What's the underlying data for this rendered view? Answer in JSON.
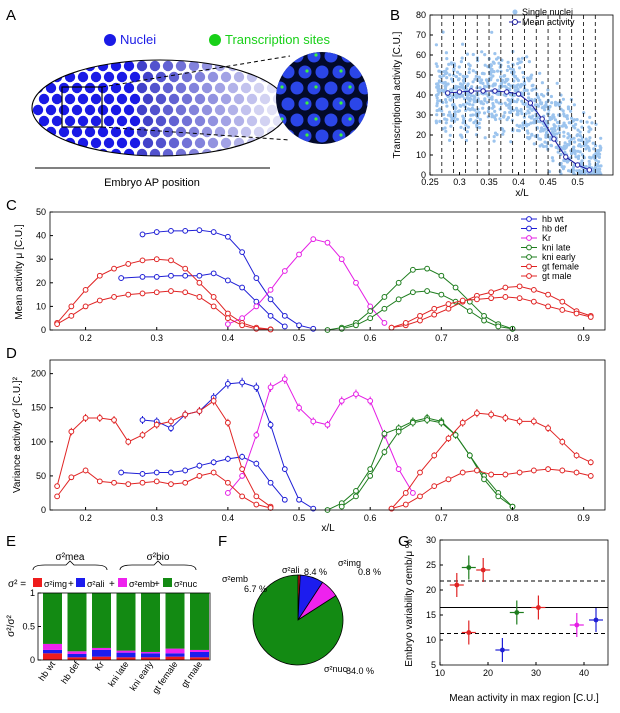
{
  "panel_letters": [
    "A",
    "B",
    "C",
    "D",
    "E",
    "F",
    "G"
  ],
  "panelA": {
    "nuclei_label": "Nuclei",
    "sites_label": "Transcription sites",
    "axis_label": "Embryo AP position",
    "nuclei_color": "#1a1ae6",
    "sites_color": "#18d018"
  },
  "chart_data": [
    {
      "id": "B",
      "type": "scatter",
      "title": "",
      "xlabel": "x/L",
      "ylabel": "Transcriptional activity [C.U.]",
      "xlim": [
        0.25,
        0.56
      ],
      "ylim": [
        0,
        80
      ],
      "xticks": [
        "0.25",
        "0.3",
        "0.35",
        "0.4",
        "0.45",
        "0.5"
      ],
      "yticks": [
        "0",
        "10",
        "20",
        "30",
        "40",
        "50",
        "60",
        "70",
        "80"
      ],
      "legend": [
        "Single nuclei",
        "Mean activity"
      ],
      "bin_edges": [
        0.27,
        0.29,
        0.31,
        0.33,
        0.35,
        0.37,
        0.39,
        0.41,
        0.43,
        0.45,
        0.47,
        0.49,
        0.51,
        0.53
      ],
      "mean_x": [
        0.28,
        0.3,
        0.32,
        0.34,
        0.36,
        0.38,
        0.4,
        0.42,
        0.44,
        0.46,
        0.48,
        0.5,
        0.52
      ],
      "mean_y": [
        41,
        41.5,
        42,
        42,
        42,
        41.5,
        40.5,
        36,
        28,
        18,
        9,
        5,
        2.5
      ]
    },
    {
      "id": "C",
      "type": "line",
      "xlabel": "",
      "ylabel": "Mean activity μ [C.U.]",
      "xlim": [
        0.15,
        0.93
      ],
      "ylim": [
        0,
        50
      ],
      "xticks": [
        "0.2",
        "0.3",
        "0.4",
        "0.5",
        "0.6",
        "0.7",
        "0.8",
        "0.9"
      ],
      "yticks": [
        "0",
        "10",
        "20",
        "30",
        "40",
        "50"
      ],
      "legend_position": "top-right",
      "series": [
        {
          "name": "hb wt",
          "color": "#1f1fd6",
          "x": [
            0.28,
            0.3,
            0.32,
            0.34,
            0.36,
            0.38,
            0.4,
            0.42,
            0.44,
            0.46,
            0.48,
            0.5,
            0.52
          ],
          "y": [
            40.5,
            41.5,
            42,
            42,
            42.3,
            41.5,
            39.5,
            33,
            22,
            13,
            6,
            2,
            0.5
          ]
        },
        {
          "name": "hb def",
          "color": "#1f1fd6",
          "x": [
            0.25,
            0.28,
            0.3,
            0.32,
            0.34,
            0.36,
            0.38,
            0.4,
            0.42,
            0.44,
            0.46,
            0.48
          ],
          "y": [
            22,
            22.5,
            22.5,
            23,
            23,
            23,
            24,
            21,
            18,
            12,
            6,
            1.5
          ]
        },
        {
          "name": "Kr",
          "color": "#e51ee5",
          "x": [
            0.4,
            0.42,
            0.44,
            0.46,
            0.48,
            0.5,
            0.52,
            0.54,
            0.56,
            0.58,
            0.6,
            0.62
          ],
          "y": [
            2.5,
            5,
            10,
            17,
            25,
            32,
            38.5,
            37,
            30,
            20,
            10,
            3
          ]
        },
        {
          "name": "kni late",
          "color": "#1e7d1e",
          "x": [
            0.54,
            0.56,
            0.58,
            0.6,
            0.62,
            0.64,
            0.66,
            0.68,
            0.7,
            0.72,
            0.74,
            0.76,
            0.78,
            0.8
          ],
          "y": [
            0,
            1,
            3,
            8,
            14,
            20,
            25.5,
            26,
            23,
            18,
            12,
            6,
            2.5,
            0.5
          ]
        },
        {
          "name": "kni early",
          "color": "#1e7d1e",
          "x": [
            0.56,
            0.58,
            0.6,
            0.62,
            0.64,
            0.66,
            0.68,
            0.7,
            0.72,
            0.74,
            0.76,
            0.78,
            0.8
          ],
          "y": [
            0.5,
            2,
            5,
            9,
            13,
            16,
            16.5,
            15,
            12,
            8,
            4,
            1.5,
            0.5
          ]
        },
        {
          "name": "gt female",
          "color": "#e02424",
          "x": [
            0.16,
            0.18,
            0.2,
            0.22,
            0.24,
            0.26,
            0.28,
            0.3,
            0.32,
            0.34,
            0.36,
            0.38,
            0.4,
            0.42,
            0.44,
            0.46,
            0.63,
            0.65,
            0.67,
            0.69,
            0.71,
            0.73,
            0.75,
            0.77,
            0.79,
            0.81,
            0.83,
            0.85,
            0.87,
            0.89,
            0.91
          ],
          "y": [
            3,
            10,
            17,
            23,
            26,
            28,
            29.5,
            30,
            29.5,
            26,
            20,
            14,
            7,
            3,
            1,
            0.3,
            1,
            2,
            4,
            6.5,
            9,
            12,
            14.5,
            16,
            18,
            18.5,
            17,
            15,
            12,
            8,
            6
          ]
        },
        {
          "name": "gt male",
          "color": "#e02424",
          "x": [
            0.16,
            0.18,
            0.2,
            0.22,
            0.24,
            0.26,
            0.28,
            0.3,
            0.32,
            0.34,
            0.36,
            0.38,
            0.4,
            0.42,
            0.44,
            0.46,
            0.63,
            0.65,
            0.67,
            0.69,
            0.71,
            0.73,
            0.75,
            0.77,
            0.79,
            0.81,
            0.83,
            0.85,
            0.87,
            0.89,
            0.91
          ],
          "y": [
            2.5,
            6,
            10,
            12.5,
            14,
            15,
            15.5,
            16,
            16.5,
            16,
            14,
            10,
            5,
            2,
            0.5,
            0.2,
            1,
            3,
            6,
            9,
            11,
            12.5,
            13,
            13.5,
            14,
            13.5,
            12,
            10,
            8.5,
            7,
            5.5
          ]
        }
      ]
    },
    {
      "id": "D",
      "type": "line",
      "xlabel": "x/L",
      "ylabel": "Variance activity σ² [C.U.]²",
      "xlim": [
        0.15,
        0.93
      ],
      "ylim": [
        0,
        220
      ],
      "xticks": [
        "0.2",
        "0.3",
        "0.4",
        "0.5",
        "0.6",
        "0.7",
        "0.8",
        "0.9"
      ],
      "yticks": [
        "0",
        "50",
        "100",
        "150",
        "200"
      ],
      "series": [
        {
          "name": "hb wt",
          "color": "#1f1fd6",
          "x": [
            0.28,
            0.3,
            0.32,
            0.34,
            0.36,
            0.38,
            0.4,
            0.42,
            0.44,
            0.46,
            0.48,
            0.5,
            0.52
          ],
          "y": [
            132,
            130,
            120,
            140,
            145,
            165,
            185,
            187,
            180,
            125,
            60,
            15,
            2
          ]
        },
        {
          "name": "hb def",
          "color": "#1f1fd6",
          "x": [
            0.25,
            0.28,
            0.3,
            0.32,
            0.34,
            0.36,
            0.38,
            0.4,
            0.42,
            0.44,
            0.46,
            0.48
          ],
          "y": [
            55,
            53,
            55,
            55,
            58,
            65,
            70,
            75,
            78,
            68,
            40,
            15
          ]
        },
        {
          "name": "Kr",
          "color": "#e51ee5",
          "x": [
            0.4,
            0.42,
            0.44,
            0.46,
            0.48,
            0.5,
            0.52,
            0.54,
            0.56,
            0.58,
            0.6,
            0.62,
            0.64,
            0.66
          ],
          "y": [
            25,
            50,
            110,
            180,
            192,
            150,
            130,
            125,
            160,
            170,
            160,
            110,
            60,
            25
          ]
        },
        {
          "name": "kni late",
          "color": "#1e7d1e",
          "x": [
            0.54,
            0.56,
            0.58,
            0.6,
            0.62,
            0.64,
            0.66,
            0.68,
            0.7,
            0.72,
            0.74,
            0.76,
            0.78,
            0.8
          ],
          "y": [
            0,
            10,
            28,
            60,
            112,
            120,
            130,
            135,
            130,
            110,
            80,
            50,
            25,
            5
          ]
        },
        {
          "name": "kni early",
          "color": "#1e7d1e",
          "x": [
            0.56,
            0.58,
            0.6,
            0.62,
            0.64,
            0.66,
            0.68,
            0.7,
            0.72,
            0.74,
            0.76,
            0.78,
            0.8
          ],
          "y": [
            5,
            20,
            50,
            85,
            115,
            128,
            132,
            128,
            110,
            80,
            45,
            20,
            5
          ]
        },
        {
          "name": "gt female",
          "color": "#e02424",
          "x": [
            0.16,
            0.18,
            0.2,
            0.22,
            0.24,
            0.26,
            0.28,
            0.3,
            0.32,
            0.34,
            0.36,
            0.38,
            0.4,
            0.42,
            0.44,
            0.46,
            0.63,
            0.65,
            0.67,
            0.69,
            0.71,
            0.73,
            0.75,
            0.77,
            0.79,
            0.81,
            0.83,
            0.85,
            0.87,
            0.89,
            0.91
          ],
          "y": [
            35,
            115,
            135,
            135,
            132,
            100,
            110,
            125,
            130,
            140,
            145,
            160,
            128,
            60,
            20,
            5,
            2,
            25,
            55,
            80,
            105,
            128,
            142,
            140,
            135,
            130,
            130,
            120,
            100,
            80,
            70
          ]
        },
        {
          "name": "gt male",
          "color": "#e02424",
          "x": [
            0.16,
            0.18,
            0.2,
            0.22,
            0.24,
            0.26,
            0.28,
            0.3,
            0.32,
            0.34,
            0.36,
            0.38,
            0.4,
            0.42,
            0.44,
            0.46,
            0.63,
            0.65,
            0.67,
            0.69,
            0.71,
            0.73,
            0.75,
            0.77,
            0.79,
            0.81,
            0.83,
            0.85,
            0.87,
            0.89,
            0.91
          ],
          "y": [
            20,
            48,
            58,
            42,
            40,
            38,
            40,
            42,
            38,
            40,
            50,
            55,
            40,
            20,
            8,
            3,
            2,
            8,
            20,
            35,
            45,
            55,
            58,
            52,
            52,
            55,
            58,
            60,
            58,
            55,
            50
          ]
        }
      ]
    },
    {
      "id": "E",
      "type": "bar",
      "stacked": true,
      "ylabel": "σ²/σ²",
      "ylim": [
        0,
        1
      ],
      "yticks": [
        "0",
        "0.5",
        "1"
      ],
      "categories": [
        "hb wt",
        "hb def",
        "Kr",
        "kni late",
        "kni early",
        "gt female",
        "gt male"
      ],
      "series": [
        {
          "name": "σ²img",
          "color": "#ee1c1c",
          "values": [
            0.1,
            0.04,
            0.05,
            0.04,
            0.04,
            0.05,
            0.04
          ]
        },
        {
          "name": "σ²ali",
          "color": "#1c1cee",
          "values": [
            0.05,
            0.05,
            0.1,
            0.07,
            0.06,
            0.05,
            0.08
          ]
        },
        {
          "name": "σ²emb",
          "color": "#ee22ee",
          "values": [
            0.09,
            0.04,
            0.03,
            0.03,
            0.02,
            0.07,
            0.03
          ]
        },
        {
          "name": "σ²nuc",
          "color": "#138a13",
          "values": [
            0.76,
            0.87,
            0.82,
            0.86,
            0.88,
            0.83,
            0.85
          ]
        }
      ]
    },
    {
      "id": "F",
      "type": "pie",
      "slices": [
        {
          "name": "σ²img",
          "value": 0.8,
          "label": "0.8 %",
          "color": "#ee1c1c"
        },
        {
          "name": "σ²ali",
          "value": 8.4,
          "label": "8.4 %",
          "color": "#1c1cee"
        },
        {
          "name": "σ²emb",
          "value": 6.7,
          "label": "6.7 %",
          "color": "#ee22ee"
        },
        {
          "name": "σ²nuc",
          "value": 84.0,
          "label": "84.0 %",
          "color": "#138a13"
        }
      ]
    },
    {
      "id": "G",
      "type": "scatter",
      "xlabel": "Mean activity in max region [C.U.]",
      "ylabel": "Embryo variability σemb/μ %",
      "xlim": [
        10,
        45
      ],
      "ylim": [
        5,
        30
      ],
      "xticks": [
        "10",
        "20",
        "30",
        "40"
      ],
      "yticks": [
        "5",
        "10",
        "15",
        "20",
        "25",
        "30"
      ],
      "hlines": {
        "solid": 16.5,
        "dashed": [
          21.8,
          11.3
        ]
      },
      "points": [
        {
          "name": "gt female",
          "x": 13.5,
          "y": 21,
          "color": "#e02424"
        },
        {
          "name": "gt male",
          "x": 16,
          "y": 11.5,
          "color": "#e02424"
        },
        {
          "name": "kni early",
          "x": 16,
          "y": 24.5,
          "color": "#1e7d1e"
        },
        {
          "name": "gt female",
          "x": 19,
          "y": 24,
          "color": "#e02424"
        },
        {
          "name": "hb def",
          "x": 23,
          "y": 8,
          "color": "#1f1fd6"
        },
        {
          "name": "kni late",
          "x": 26,
          "y": 15.5,
          "color": "#1e7d1e"
        },
        {
          "name": "gt male",
          "x": 30.5,
          "y": 16.5,
          "color": "#e02424"
        },
        {
          "name": "Kr",
          "x": 38.5,
          "y": 13,
          "color": "#e51ee5"
        },
        {
          "name": "hb wt",
          "x": 42.5,
          "y": 14,
          "color": "#1f1fd6"
        }
      ]
    }
  ],
  "panelE_labels": {
    "equation_lhs": "σ² =",
    "mea": "σ²mea",
    "bio": "σ²bio",
    "img": "σ²img",
    "ali": "σ²ali",
    "emb": "σ²emb",
    "nuc": "σ²nuc"
  },
  "panelF_labels": {
    "img": "σ²img",
    "ali": "σ²ali",
    "emb": "σ²emb",
    "nuc": "σ²nuc"
  }
}
